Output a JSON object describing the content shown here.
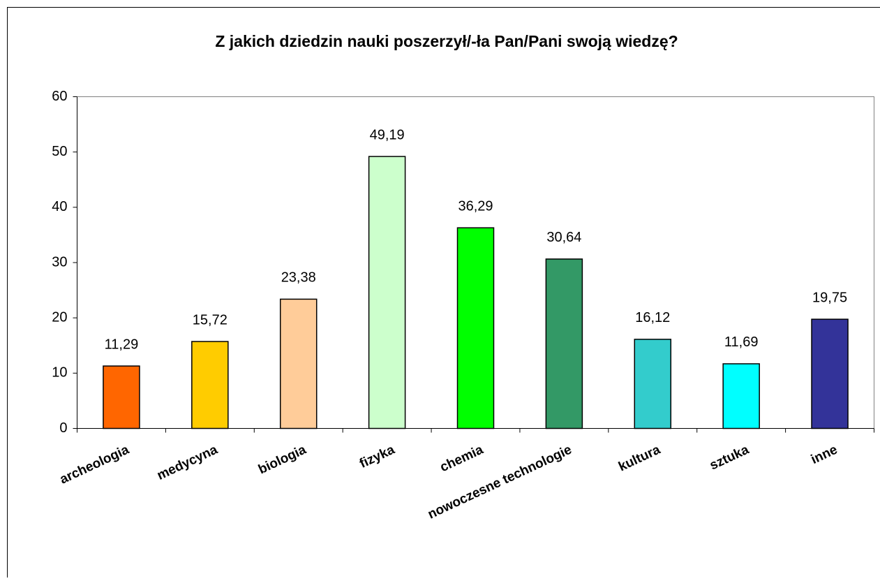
{
  "chart_data": {
    "type": "bar",
    "title": "Z jakich dziedzin nauki poszerzył/-ła Pan/Pani swoją wiedzę?",
    "categories": [
      "archeologia",
      "medycyna",
      "biologia",
      "fizyka",
      "chemia",
      "nowoczesne technologie",
      "kultura",
      "sztuka",
      "inne"
    ],
    "values": [
      11.29,
      15.72,
      23.38,
      49.19,
      36.29,
      30.64,
      16.12,
      11.69,
      19.75
    ],
    "value_labels": [
      "11,29",
      "15,72",
      "23,38",
      "49,19",
      "36,29",
      "30,64",
      "16,12",
      "11,69",
      "19,75"
    ],
    "colors": [
      "#ff6600",
      "#ffcc00",
      "#ffcc99",
      "#ccffcc",
      "#00ff00",
      "#339966",
      "#33cccc",
      "#00ffff",
      "#333399"
    ],
    "ylim": [
      0,
      60
    ],
    "yticks": [
      0,
      10,
      20,
      30,
      40,
      50,
      60
    ],
    "grid": false
  }
}
